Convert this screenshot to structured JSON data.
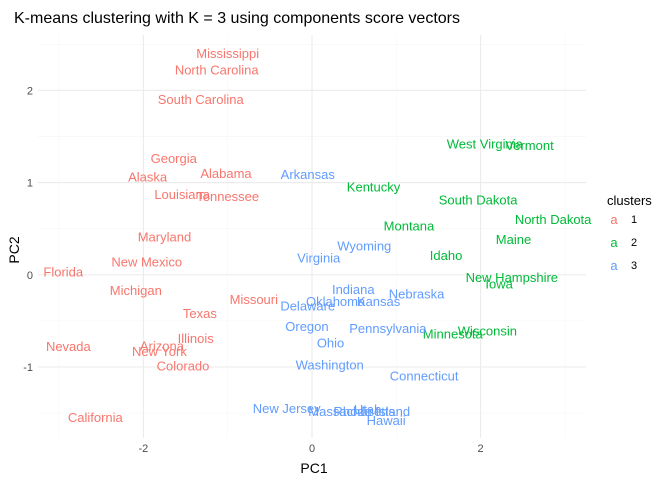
{
  "chart_data": {
    "type": "scatter",
    "title": "K-means clustering with K = 3 using components score vectors",
    "xlabel": "PC1",
    "ylabel": "PC2",
    "xlim": [
      -3.25,
      3.25
    ],
    "ylim": [
      -1.77,
      2.6
    ],
    "x_ticks": [
      -2,
      0,
      2
    ],
    "y_ticks": [
      -1,
      0,
      1,
      2
    ],
    "grid": true,
    "legend": {
      "title": "clusters",
      "position": "right",
      "entries": [
        "1",
        "2",
        "3"
      ]
    },
    "colors": {
      "1": "#F8766D",
      "2": "#00BA38",
      "3": "#619CFF"
    },
    "points": [
      {
        "label": "Mississippi",
        "x": -1.0,
        "y": 2.4,
        "cluster": "1"
      },
      {
        "label": "North Carolina",
        "x": -1.13,
        "y": 2.22,
        "cluster": "1"
      },
      {
        "label": "South Carolina",
        "x": -1.32,
        "y": 1.9,
        "cluster": "1"
      },
      {
        "label": "Georgia",
        "x": -1.64,
        "y": 1.26,
        "cluster": "1"
      },
      {
        "label": "Alabama",
        "x": -1.02,
        "y": 1.1,
        "cluster": "1"
      },
      {
        "label": "Alaska",
        "x": -1.95,
        "y": 1.06,
        "cluster": "1"
      },
      {
        "label": "Louisiana",
        "x": -1.54,
        "y": 0.87,
        "cluster": "1"
      },
      {
        "label": "Tennessee",
        "x": -1.0,
        "y": 0.85,
        "cluster": "1"
      },
      {
        "label": "Maryland",
        "x": -1.75,
        "y": 0.41,
        "cluster": "1"
      },
      {
        "label": "New Mexico",
        "x": -1.96,
        "y": 0.14,
        "cluster": "1"
      },
      {
        "label": "Florida",
        "x": -2.95,
        "y": 0.03,
        "cluster": "1"
      },
      {
        "label": "Michigan",
        "x": -2.09,
        "y": -0.17,
        "cluster": "1"
      },
      {
        "label": "Missouri",
        "x": -0.69,
        "y": -0.27,
        "cluster": "1"
      },
      {
        "label": "Texas",
        "x": -1.33,
        "y": -0.42,
        "cluster": "1"
      },
      {
        "label": "Illinois",
        "x": -1.38,
        "y": -0.69,
        "cluster": "1"
      },
      {
        "label": "Nevada",
        "x": -2.89,
        "y": -0.78,
        "cluster": "1"
      },
      {
        "label": "Arizona",
        "x": -1.78,
        "y": -0.77,
        "cluster": "1"
      },
      {
        "label": "New York",
        "x": -1.81,
        "y": -0.83,
        "cluster": "1"
      },
      {
        "label": "Colorado",
        "x": -1.53,
        "y": -0.99,
        "cluster": "1"
      },
      {
        "label": "California",
        "x": -2.57,
        "y": -1.55,
        "cluster": "1"
      },
      {
        "label": "West Virginia",
        "x": 2.05,
        "y": 1.42,
        "cluster": "2"
      },
      {
        "label": "Vermont",
        "x": 2.58,
        "y": 1.4,
        "cluster": "2"
      },
      {
        "label": "Kentucky",
        "x": 0.73,
        "y": 0.95,
        "cluster": "2"
      },
      {
        "label": "South Dakota",
        "x": 1.97,
        "y": 0.81,
        "cluster": "2"
      },
      {
        "label": "North Dakota",
        "x": 2.86,
        "y": 0.6,
        "cluster": "2"
      },
      {
        "label": "Montana",
        "x": 1.15,
        "y": 0.53,
        "cluster": "2"
      },
      {
        "label": "Maine",
        "x": 2.39,
        "y": 0.38,
        "cluster": "2"
      },
      {
        "label": "Idaho",
        "x": 1.59,
        "y": 0.21,
        "cluster": "2"
      },
      {
        "label": "New Hampshire",
        "x": 2.37,
        "y": -0.03,
        "cluster": "2"
      },
      {
        "label": "Iowa",
        "x": 2.22,
        "y": -0.1,
        "cluster": "2"
      },
      {
        "label": "Wisconsin",
        "x": 2.08,
        "y": -0.61,
        "cluster": "2"
      },
      {
        "label": "Minnesota",
        "x": 1.67,
        "y": -0.64,
        "cluster": "2"
      },
      {
        "label": "Arkansas",
        "x": -0.05,
        "y": 1.09,
        "cluster": "3"
      },
      {
        "label": "Wyoming",
        "x": 0.62,
        "y": 0.31,
        "cluster": "3"
      },
      {
        "label": "Virginia",
        "x": 0.08,
        "y": 0.18,
        "cluster": "3"
      },
      {
        "label": "Indiana",
        "x": 0.49,
        "y": -0.16,
        "cluster": "3"
      },
      {
        "label": "Nebraska",
        "x": 1.24,
        "y": -0.21,
        "cluster": "3"
      },
      {
        "label": "Oklahoma",
        "x": 0.28,
        "y": -0.29,
        "cluster": "3"
      },
      {
        "label": "Kansas",
        "x": 0.79,
        "y": -0.29,
        "cluster": "3"
      },
      {
        "label": "Delaware",
        "x": -0.05,
        "y": -0.34,
        "cluster": "3"
      },
      {
        "label": "Oregon",
        "x": -0.06,
        "y": -0.56,
        "cluster": "3"
      },
      {
        "label": "Pennsylvania",
        "x": 0.9,
        "y": -0.58,
        "cluster": "3"
      },
      {
        "label": "Ohio",
        "x": 0.22,
        "y": -0.74,
        "cluster": "3"
      },
      {
        "label": "Washington",
        "x": 0.21,
        "y": -0.98,
        "cluster": "3"
      },
      {
        "label": "Connecticut",
        "x": 1.33,
        "y": -1.1,
        "cluster": "3"
      },
      {
        "label": "New Jersey",
        "x": -0.3,
        "y": -1.45,
        "cluster": "3"
      },
      {
        "label": "Massachusetts",
        "x": 0.47,
        "y": -1.48,
        "cluster": "3"
      },
      {
        "label": "Rhode Island",
        "x": 0.71,
        "y": -1.48,
        "cluster": "3"
      },
      {
        "label": "Utah",
        "x": 0.66,
        "y": -1.46,
        "cluster": "3"
      },
      {
        "label": "Hawaii",
        "x": 0.88,
        "y": -1.58,
        "cluster": "3"
      }
    ]
  }
}
